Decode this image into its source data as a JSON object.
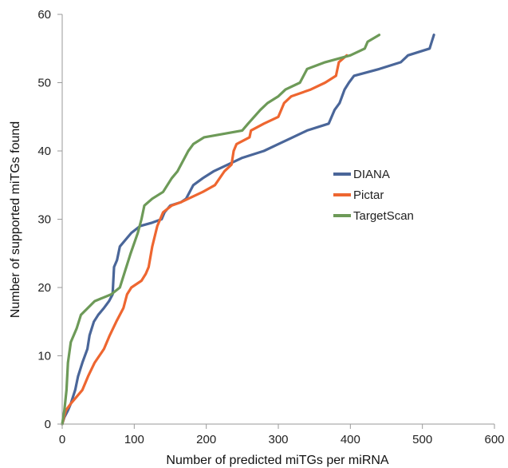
{
  "chart_data": {
    "type": "line",
    "title": "",
    "xlabel": "Number of predicted miTGs per miRNA",
    "ylabel": "Number of supported miTGs found",
    "xlim": [
      0,
      600
    ],
    "ylim": [
      0,
      60
    ],
    "xticks": [
      "0",
      "100",
      "200",
      "300",
      "400",
      "500",
      "600"
    ],
    "yticks": [
      "0",
      "10",
      "20",
      "30",
      "40",
      "50",
      "60"
    ],
    "grid": false,
    "legend_position": "center-right",
    "series": [
      {
        "name": "DIANA",
        "color": "#4a6699",
        "points": [
          [
            0,
            0
          ],
          [
            3,
            1
          ],
          [
            8,
            2
          ],
          [
            12,
            3
          ],
          [
            18,
            5
          ],
          [
            22,
            7
          ],
          [
            28,
            9
          ],
          [
            35,
            11
          ],
          [
            38,
            13
          ],
          [
            44,
            15
          ],
          [
            50,
            16
          ],
          [
            58,
            17
          ],
          [
            65,
            18
          ],
          [
            70,
            19
          ],
          [
            72,
            23
          ],
          [
            76,
            24
          ],
          [
            80,
            26
          ],
          [
            88,
            27
          ],
          [
            96,
            28
          ],
          [
            108,
            29
          ],
          [
            125,
            29.5
          ],
          [
            138,
            30
          ],
          [
            142,
            31
          ],
          [
            150,
            32
          ],
          [
            165,
            32.5
          ],
          [
            172,
            33
          ],
          [
            182,
            35
          ],
          [
            195,
            36
          ],
          [
            210,
            37
          ],
          [
            230,
            38
          ],
          [
            250,
            39
          ],
          [
            280,
            40
          ],
          [
            300,
            41
          ],
          [
            320,
            42
          ],
          [
            340,
            43
          ],
          [
            370,
            44
          ],
          [
            378,
            46
          ],
          [
            385,
            47
          ],
          [
            392,
            49
          ],
          [
            398,
            50
          ],
          [
            405,
            51
          ],
          [
            440,
            52
          ],
          [
            470,
            53
          ],
          [
            480,
            54
          ],
          [
            510,
            55
          ],
          [
            513,
            56
          ],
          [
            516,
            57
          ]
        ]
      },
      {
        "name": "Pictar",
        "color": "#ee6630",
        "points": [
          [
            0,
            0
          ],
          [
            5,
            2
          ],
          [
            12,
            3
          ],
          [
            20,
            4
          ],
          [
            28,
            5
          ],
          [
            36,
            7
          ],
          [
            45,
            9
          ],
          [
            58,
            11
          ],
          [
            66,
            13
          ],
          [
            75,
            15
          ],
          [
            85,
            17
          ],
          [
            90,
            19
          ],
          [
            96,
            20
          ],
          [
            110,
            21
          ],
          [
            116,
            22
          ],
          [
            120,
            23
          ],
          [
            125,
            26
          ],
          [
            132,
            29
          ],
          [
            140,
            31
          ],
          [
            152,
            32
          ],
          [
            165,
            32.5
          ],
          [
            175,
            33
          ],
          [
            195,
            34
          ],
          [
            212,
            35
          ],
          [
            225,
            37
          ],
          [
            235,
            38
          ],
          [
            238,
            40
          ],
          [
            242,
            41
          ],
          [
            260,
            42
          ],
          [
            262,
            43
          ],
          [
            280,
            44
          ],
          [
            300,
            45
          ],
          [
            308,
            47
          ],
          [
            318,
            48
          ],
          [
            345,
            49
          ],
          [
            365,
            50
          ],
          [
            380,
            51
          ],
          [
            384,
            53
          ],
          [
            395,
            54
          ]
        ]
      },
      {
        "name": "TargetScan",
        "color": "#6d9a58",
        "points": [
          [
            0,
            0
          ],
          [
            3,
            2
          ],
          [
            6,
            5
          ],
          [
            8,
            9
          ],
          [
            12,
            12
          ],
          [
            20,
            14
          ],
          [
            26,
            16
          ],
          [
            45,
            18
          ],
          [
            68,
            19
          ],
          [
            80,
            20
          ],
          [
            86,
            22
          ],
          [
            95,
            25
          ],
          [
            105,
            28
          ],
          [
            110,
            30
          ],
          [
            114,
            32
          ],
          [
            125,
            33
          ],
          [
            140,
            34
          ],
          [
            152,
            36
          ],
          [
            160,
            37
          ],
          [
            175,
            40
          ],
          [
            182,
            41
          ],
          [
            197,
            42
          ],
          [
            250,
            43
          ],
          [
            258,
            44
          ],
          [
            275,
            46
          ],
          [
            285,
            47
          ],
          [
            300,
            48
          ],
          [
            310,
            49
          ],
          [
            330,
            50
          ],
          [
            340,
            52
          ],
          [
            365,
            53
          ],
          [
            400,
            54
          ],
          [
            420,
            55
          ],
          [
            424,
            56
          ],
          [
            440,
            57
          ]
        ]
      }
    ]
  }
}
